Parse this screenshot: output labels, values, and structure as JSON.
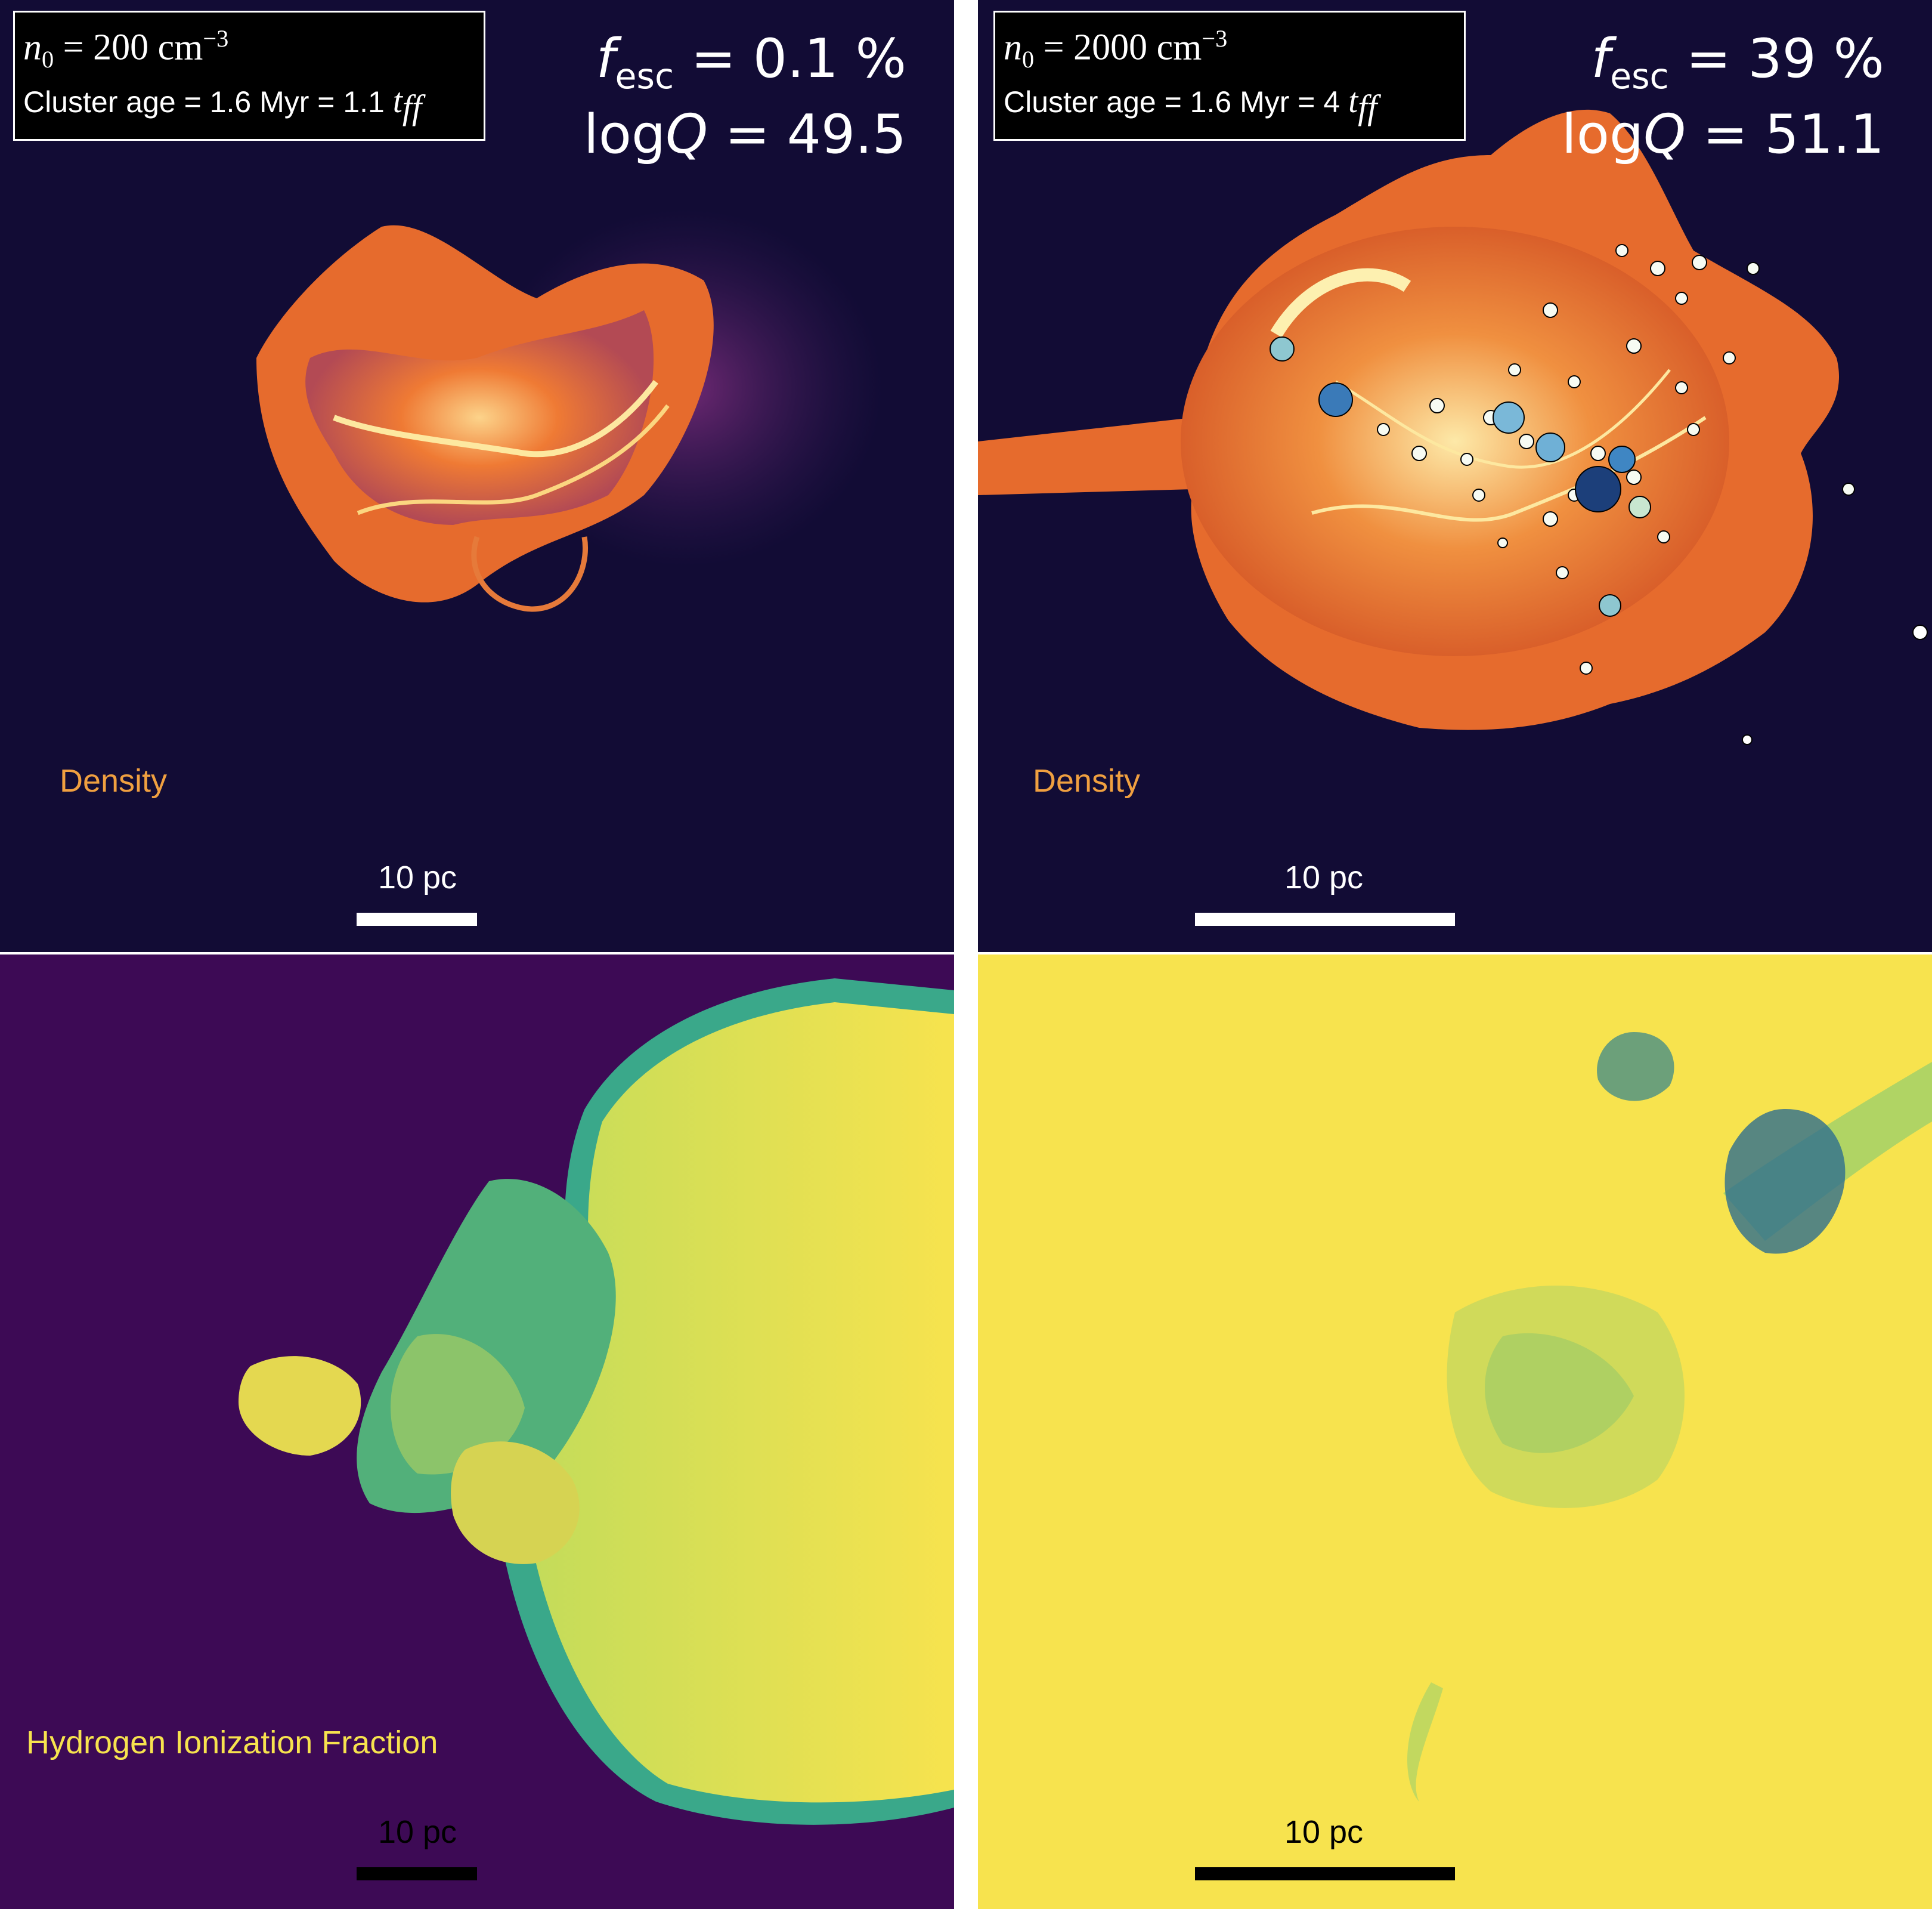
{
  "panels": {
    "top_left": {
      "n0_value": "= 200 cm",
      "n0_exp": "−3",
      "age_text": "Cluster age = 1.6 Myr = 1.1 ",
      "fesc_value": "= 0.1 %",
      "logq_value": "= 49.5",
      "map_label": "Density",
      "scale_label": "10 pc"
    },
    "top_right": {
      "n0_value": "= 2000 cm",
      "n0_exp": "−3",
      "age_text": "Cluster age = 1.6 Myr = 4 ",
      "fesc_value": "= 39 %",
      "logq_value": "= 51.1",
      "map_label": "Density",
      "scale_label": "10 pc"
    },
    "bottom_left": {
      "map_label": "Hydrogen Ionization Fraction",
      "scale_label": "10 pc"
    },
    "bottom_right": {
      "scale_label": "10 pc"
    }
  },
  "symbols": {
    "n": "n",
    "n_sub": "0",
    "f": "f",
    "f_sub": "esc",
    "log": "log",
    "Q": "Q",
    "t": "t",
    "t_sub": "ff"
  },
  "colors": {
    "density_bg": "#120c35",
    "density_cloud": "#e66b2d",
    "density_bright": "#fbe08a",
    "ion_low": "#3d0a55",
    "ion_high": "#f7e34e",
    "ion_mid": "#3aa88a",
    "label_orange": "#f0a040",
    "label_yellow": "#f7e34e"
  }
}
